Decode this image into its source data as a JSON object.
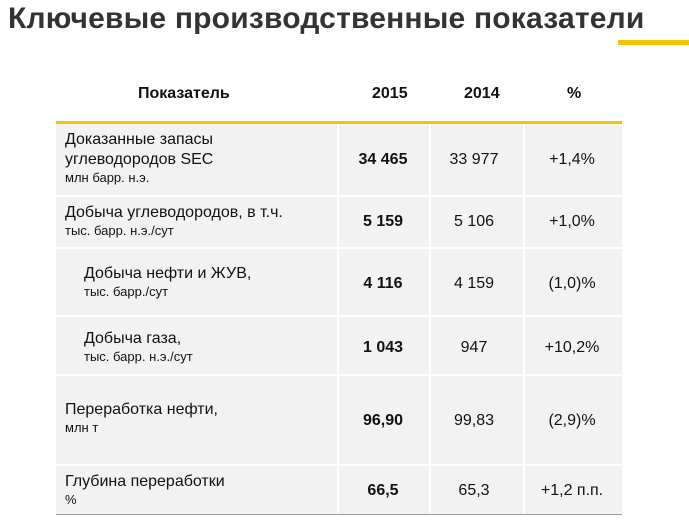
{
  "title": "Ключевые производственные показатели",
  "table": {
    "headers": [
      "Показатель",
      "2015",
      "2014",
      "%"
    ],
    "rows": [
      {
        "label_lines": [
          "Доказанные запасы",
          "углеводородов SEC"
        ],
        "unit": "млн барр. н.э.",
        "v2015": "34 465",
        "v2014": "33 977",
        "pct": "+1,4%",
        "indent": false
      },
      {
        "label_lines": [
          "Добыча углеводородов, в т.ч."
        ],
        "unit": "тыс. барр. н.э./сут",
        "v2015": "5 159",
        "v2014": "5 106",
        "pct": "+1,0%",
        "indent": false
      },
      {
        "label_lines": [
          "Добыча нефти и ЖУВ,"
        ],
        "unit": "тыс. барр./сут",
        "v2015": "4 116",
        "v2014": "4 159",
        "pct": "(1,0)%",
        "indent": true
      },
      {
        "label_lines": [
          "Добыча газа,"
        ],
        "unit": "тыс. барр. н.э./сут",
        "v2015": "1 043",
        "v2014": "947",
        "pct": "+10,2%",
        "indent": true
      },
      {
        "label_lines": [
          "Переработка нефти,"
        ],
        "unit": "млн т",
        "v2015": "96,90",
        "v2014": "99,83",
        "pct": "(2,9)%",
        "indent": false
      },
      {
        "label_lines": [
          "Глубина переработки"
        ],
        "unit": "%",
        "v2015": "66,5",
        "v2014": "65,3",
        "pct": "+1,2 п.п.",
        "indent": false
      }
    ]
  },
  "colors": {
    "accent": "#f5c400",
    "row_bg": "#f2f2f2",
    "title": "#333333"
  }
}
